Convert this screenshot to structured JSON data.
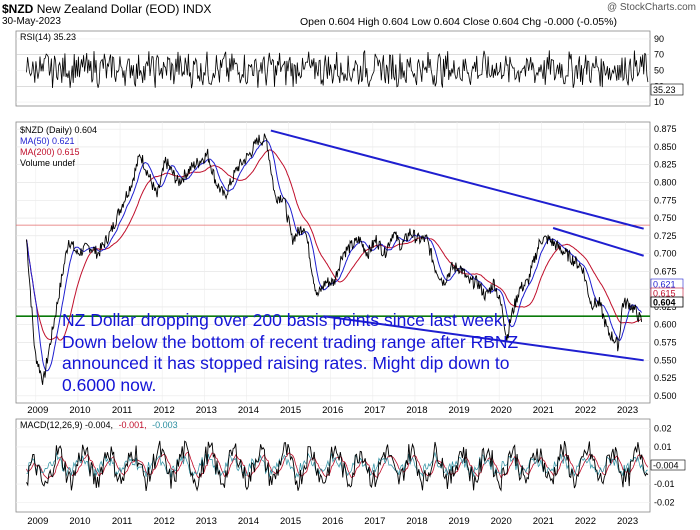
{
  "header": {
    "symbol": "$NZD",
    "name": "New Zealand Dollar (EOD)",
    "exchange": "INDX",
    "date": "30-May-2023",
    "copyright": "@ StockCharts.com",
    "quote": "Open 0.604  High 0.604  Low 0.604  Close 0.604  Chg -0.000 (-0.05%)"
  },
  "annotation": "NZ Dollar dropping over 200 basis points since last week. Down below the bottom of recent trading range after RBNZ announced it has stopped raising rates. Might dip down to 0.6000 now.",
  "chart_data": [
    {
      "type": "line",
      "panel": "RSI",
      "legend": "RSI(14) 35.23",
      "y_ticks": [
        10,
        30,
        50,
        70,
        90
      ],
      "ylim": [
        5,
        100
      ],
      "last_value": "35.23",
      "last_label": "35.23"
    },
    {
      "type": "line",
      "panel": "price",
      "legend": [
        "$NZD (Daily) 0.604",
        "MA(50) 0.621",
        "MA(200) 0.615",
        "Volume undef"
      ],
      "y_ticks": [
        "0.875",
        "0.850",
        "0.825",
        "0.800",
        "0.775",
        "0.750",
        "0.725",
        "0.700",
        "0.675",
        "0.650",
        "0.625",
        "0.600",
        "0.575",
        "0.550",
        "0.525",
        "0.500"
      ],
      "ylim": [
        0.49,
        0.885
      ],
      "x_labels": [
        "2009",
        "2010",
        "2011",
        "2012",
        "2013",
        "2014",
        "2015",
        "2016",
        "2017",
        "2018",
        "2019",
        "2020",
        "2021",
        "2022",
        "2023"
      ],
      "x": [
        2008.8,
        2009.0,
        2009.2,
        2009.5,
        2009.8,
        2010.0,
        2010.3,
        2010.5,
        2010.8,
        2011.0,
        2011.3,
        2011.5,
        2011.7,
        2011.9,
        2012.1,
        2012.4,
        2012.7,
        2012.9,
        2013.1,
        2013.3,
        2013.5,
        2013.8,
        2014.1,
        2014.3,
        2014.5,
        2014.7,
        2014.9,
        2015.1,
        2015.4,
        2015.6,
        2015.7,
        2015.9,
        2016.1,
        2016.3,
        2016.5,
        2016.7,
        2016.9,
        2017.1,
        2017.3,
        2017.5,
        2017.7,
        2017.9,
        2018.1,
        2018.3,
        2018.5,
        2018.7,
        2018.9,
        2019.1,
        2019.3,
        2019.5,
        2019.7,
        2019.9,
        2020.1,
        2020.2,
        2020.3,
        2020.5,
        2020.7,
        2020.9,
        2021.0,
        2021.2,
        2021.4,
        2021.6,
        2021.8,
        2022.0,
        2022.2,
        2022.4,
        2022.6,
        2022.75,
        2022.85,
        2022.95,
        2023.1,
        2023.25,
        2023.4
      ],
      "close": [
        0.72,
        0.56,
        0.52,
        0.62,
        0.72,
        0.7,
        0.71,
        0.7,
        0.73,
        0.76,
        0.8,
        0.84,
        0.81,
        0.78,
        0.83,
        0.8,
        0.82,
        0.83,
        0.84,
        0.8,
        0.78,
        0.82,
        0.84,
        0.86,
        0.86,
        0.78,
        0.78,
        0.72,
        0.74,
        0.67,
        0.64,
        0.66,
        0.66,
        0.7,
        0.71,
        0.72,
        0.7,
        0.72,
        0.7,
        0.73,
        0.71,
        0.73,
        0.72,
        0.72,
        0.68,
        0.66,
        0.68,
        0.68,
        0.66,
        0.66,
        0.64,
        0.66,
        0.62,
        0.58,
        0.61,
        0.65,
        0.66,
        0.7,
        0.72,
        0.72,
        0.71,
        0.7,
        0.69,
        0.68,
        0.63,
        0.63,
        0.59,
        0.58,
        0.57,
        0.63,
        0.63,
        0.62,
        0.604
      ],
      "trendlines": [
        {
          "from": [
            2014.6,
            0.873
          ],
          "to": [
            2023.45,
            0.735
          ]
        },
        {
          "from": [
            2021.3,
            0.736
          ],
          "to": [
            2023.45,
            0.697
          ]
        },
        {
          "from": [
            2015.85,
            0.612
          ],
          "to": [
            2023.45,
            0.55
          ]
        }
      ],
      "support_level": 0.612,
      "reference_level": 0.74,
      "last_labels": [
        "0.621",
        "0.615",
        "0.604"
      ],
      "colors": {
        "price": "#000000",
        "ma50": "#1f1fd0",
        "ma200": "#c0102c",
        "trend": "#1f1fd0",
        "support": "#0a7a0a",
        "reference": "#e36a6a"
      }
    },
    {
      "type": "line",
      "panel": "MACD",
      "legend": [
        "MACD(12,26,9) -0.004,",
        "-0.001,",
        "-0.003"
      ],
      "y_ticks": [
        "0.02",
        "0.01",
        "0.00",
        "-0.01",
        "-0.02"
      ],
      "ylim": [
        -0.025,
        0.025
      ],
      "last_label": "-0.004",
      "x_labels": [
        "2009",
        "2010",
        "2011",
        "2012",
        "2013",
        "2014",
        "2015",
        "2016",
        "2017",
        "2018",
        "2019",
        "2020",
        "2021",
        "2022",
        "2023"
      ]
    }
  ]
}
